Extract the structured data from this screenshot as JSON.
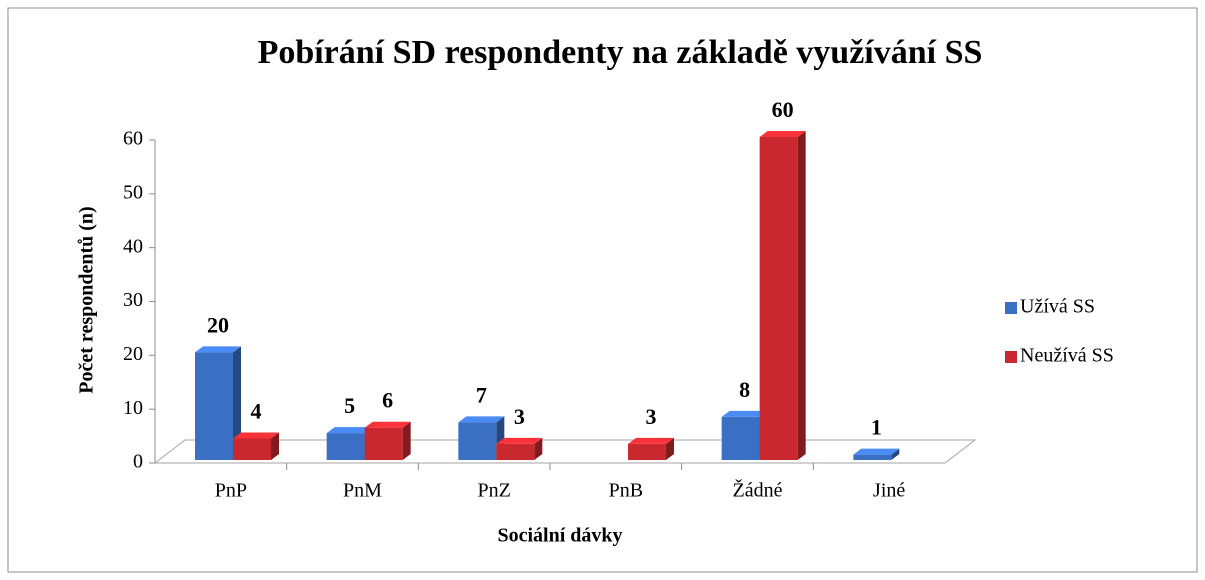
{
  "chart_data": {
    "type": "bar3d",
    "title": "Pobírání SD respondenty na základě využívání SS",
    "x_label": "Sociální dávky",
    "y_label": "Počet respondentů (n)",
    "categories": [
      "PnP",
      "PnM",
      "PnZ",
      "PnB",
      "Žádné",
      "Jiné"
    ],
    "series": [
      {
        "name": "Užívá SS",
        "color": "#3b6fc4",
        "values": [
          20,
          5,
          7,
          null,
          8,
          1
        ]
      },
      {
        "name": "Neužívá SS",
        "color": "#c8282e",
        "values": [
          4,
          6,
          3,
          3,
          60,
          null
        ]
      }
    ],
    "ylim": [
      0,
      60
    ],
    "yticks": [
      0,
      10,
      20,
      30,
      40,
      50,
      60
    ],
    "legend": "right"
  }
}
